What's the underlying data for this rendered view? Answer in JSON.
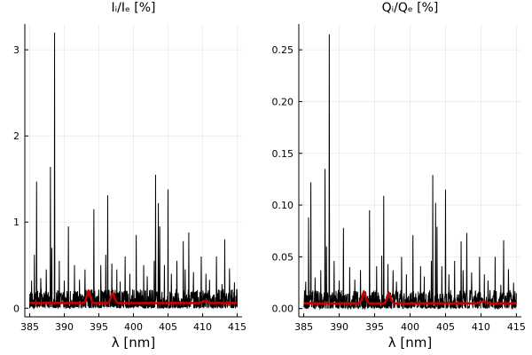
{
  "chart_data": [
    {
      "type": "line",
      "title": "Iᵢ/Iₑ [%]",
      "xlabel": "λ [nm]",
      "ylabel": "",
      "xlim": [
        384.3,
        415.7
      ],
      "ylim": [
        -0.1,
        3.3
      ],
      "xticks": [
        385,
        390,
        395,
        400,
        405,
        410,
        415
      ],
      "xtick_labels": [
        "385",
        "390",
        "395",
        "400",
        "405",
        "410",
        "415"
      ],
      "yticks": [
        0,
        1,
        2,
        3
      ],
      "ytick_labels": [
        "0",
        "1",
        "2",
        "3"
      ],
      "grid": true,
      "legend": "none",
      "noise_max": 0.22,
      "series": [
        {
          "color": "#000000",
          "spikes": [
            [
              385.3,
              0.32
            ],
            [
              385.7,
              0.62
            ],
            [
              386.0,
              1.47
            ],
            [
              386.6,
              0.35
            ],
            [
              387.4,
              0.45
            ],
            [
              388.0,
              1.64
            ],
            [
              388.2,
              0.7
            ],
            [
              388.6,
              3.2
            ],
            [
              389.3,
              0.55
            ],
            [
              390.0,
              0.32
            ],
            [
              390.6,
              0.95
            ],
            [
              391.5,
              0.5
            ],
            [
              392.2,
              0.33
            ],
            [
              393.0,
              0.45
            ],
            [
              394.3,
              1.15
            ],
            [
              395.3,
              0.5
            ],
            [
              396.0,
              0.62
            ],
            [
              396.3,
              1.31
            ],
            [
              396.9,
              0.52
            ],
            [
              397.6,
              0.45
            ],
            [
              398.1,
              0.31
            ],
            [
              398.8,
              0.6
            ],
            [
              399.5,
              0.4
            ],
            [
              400.4,
              0.85
            ],
            [
              401.5,
              0.5
            ],
            [
              402.0,
              0.37
            ],
            [
              403.0,
              0.55
            ],
            [
              403.2,
              1.55
            ],
            [
              403.6,
              1.22
            ],
            [
              403.8,
              0.95
            ],
            [
              404.5,
              0.5
            ],
            [
              405.0,
              1.38
            ],
            [
              405.5,
              0.4
            ],
            [
              406.3,
              0.55
            ],
            [
              407.2,
              0.78
            ],
            [
              407.5,
              0.45
            ],
            [
              408.0,
              0.88
            ],
            [
              408.7,
              0.42
            ],
            [
              409.8,
              0.6
            ],
            [
              410.5,
              0.4
            ],
            [
              411.0,
              0.33
            ],
            [
              412.0,
              0.6
            ],
            [
              412.8,
              0.28
            ],
            [
              413.2,
              0.8
            ],
            [
              413.9,
              0.46
            ],
            [
              414.6,
              0.3
            ]
          ]
        },
        {
          "color": "#cc0000",
          "baseline": 0.06,
          "bumps": [
            {
              "x": 393.5,
              "height": 0.14,
              "width": 0.35
            },
            {
              "x": 397.0,
              "height": 0.12,
              "width": 0.35
            },
            {
              "x": 410.3,
              "height": 0.025,
              "width": 0.5
            }
          ]
        }
      ]
    },
    {
      "type": "line",
      "title": "Qᵢ/Qₑ [%]",
      "xlabel": "λ [nm]",
      "ylabel": "",
      "xlim": [
        384.3,
        415.7
      ],
      "ylim": [
        -0.008,
        0.275
      ],
      "xticks": [
        385,
        390,
        395,
        400,
        405,
        410,
        415
      ],
      "xtick_labels": [
        "385",
        "390",
        "395",
        "400",
        "405",
        "410",
        "415"
      ],
      "yticks": [
        0.0,
        0.05,
        0.1,
        0.15,
        0.2,
        0.25
      ],
      "ytick_labels": [
        "0.00",
        "0.05",
        "0.10",
        "0.15",
        "0.20",
        "0.25"
      ],
      "grid": true,
      "legend": "none",
      "noise_max": 0.018,
      "series": [
        {
          "color": "#000000",
          "spikes": [
            [
              385.3,
              0.026
            ],
            [
              385.7,
              0.088
            ],
            [
              386.0,
              0.122
            ],
            [
              386.6,
              0.03
            ],
            [
              387.4,
              0.037
            ],
            [
              388.0,
              0.135
            ],
            [
              388.2,
              0.06
            ],
            [
              388.6,
              0.265
            ],
            [
              389.3,
              0.046
            ],
            [
              390.0,
              0.027
            ],
            [
              390.6,
              0.078
            ],
            [
              391.5,
              0.04
            ],
            [
              392.2,
              0.028
            ],
            [
              393.0,
              0.037
            ],
            [
              394.3,
              0.095
            ],
            [
              395.3,
              0.041
            ],
            [
              396.0,
              0.051
            ],
            [
              396.3,
              0.109
            ],
            [
              396.9,
              0.043
            ],
            [
              397.6,
              0.037
            ],
            [
              398.1,
              0.026
            ],
            [
              398.8,
              0.05
            ],
            [
              399.5,
              0.033
            ],
            [
              400.4,
              0.071
            ],
            [
              401.5,
              0.041
            ],
            [
              402.0,
              0.031
            ],
            [
              403.0,
              0.046
            ],
            [
              403.2,
              0.129
            ],
            [
              403.6,
              0.102
            ],
            [
              403.8,
              0.079
            ],
            [
              404.5,
              0.041
            ],
            [
              405.0,
              0.115
            ],
            [
              405.5,
              0.033
            ],
            [
              406.3,
              0.046
            ],
            [
              407.2,
              0.065
            ],
            [
              407.5,
              0.037
            ],
            [
              408.0,
              0.073
            ],
            [
              408.7,
              0.035
            ],
            [
              409.8,
              0.05
            ],
            [
              410.5,
              0.033
            ],
            [
              411.0,
              0.027
            ],
            [
              412.0,
              0.05
            ],
            [
              412.8,
              0.023
            ],
            [
              413.2,
              0.066
            ],
            [
              413.9,
              0.038
            ],
            [
              414.6,
              0.025
            ]
          ]
        },
        {
          "color": "#cc0000",
          "baseline": 0.005,
          "bumps": [
            {
              "x": 393.5,
              "height": 0.011,
              "width": 0.35
            },
            {
              "x": 397.0,
              "height": 0.01,
              "width": 0.35
            },
            {
              "x": 410.3,
              "height": 0.002,
              "width": 0.5
            }
          ]
        }
      ]
    }
  ]
}
